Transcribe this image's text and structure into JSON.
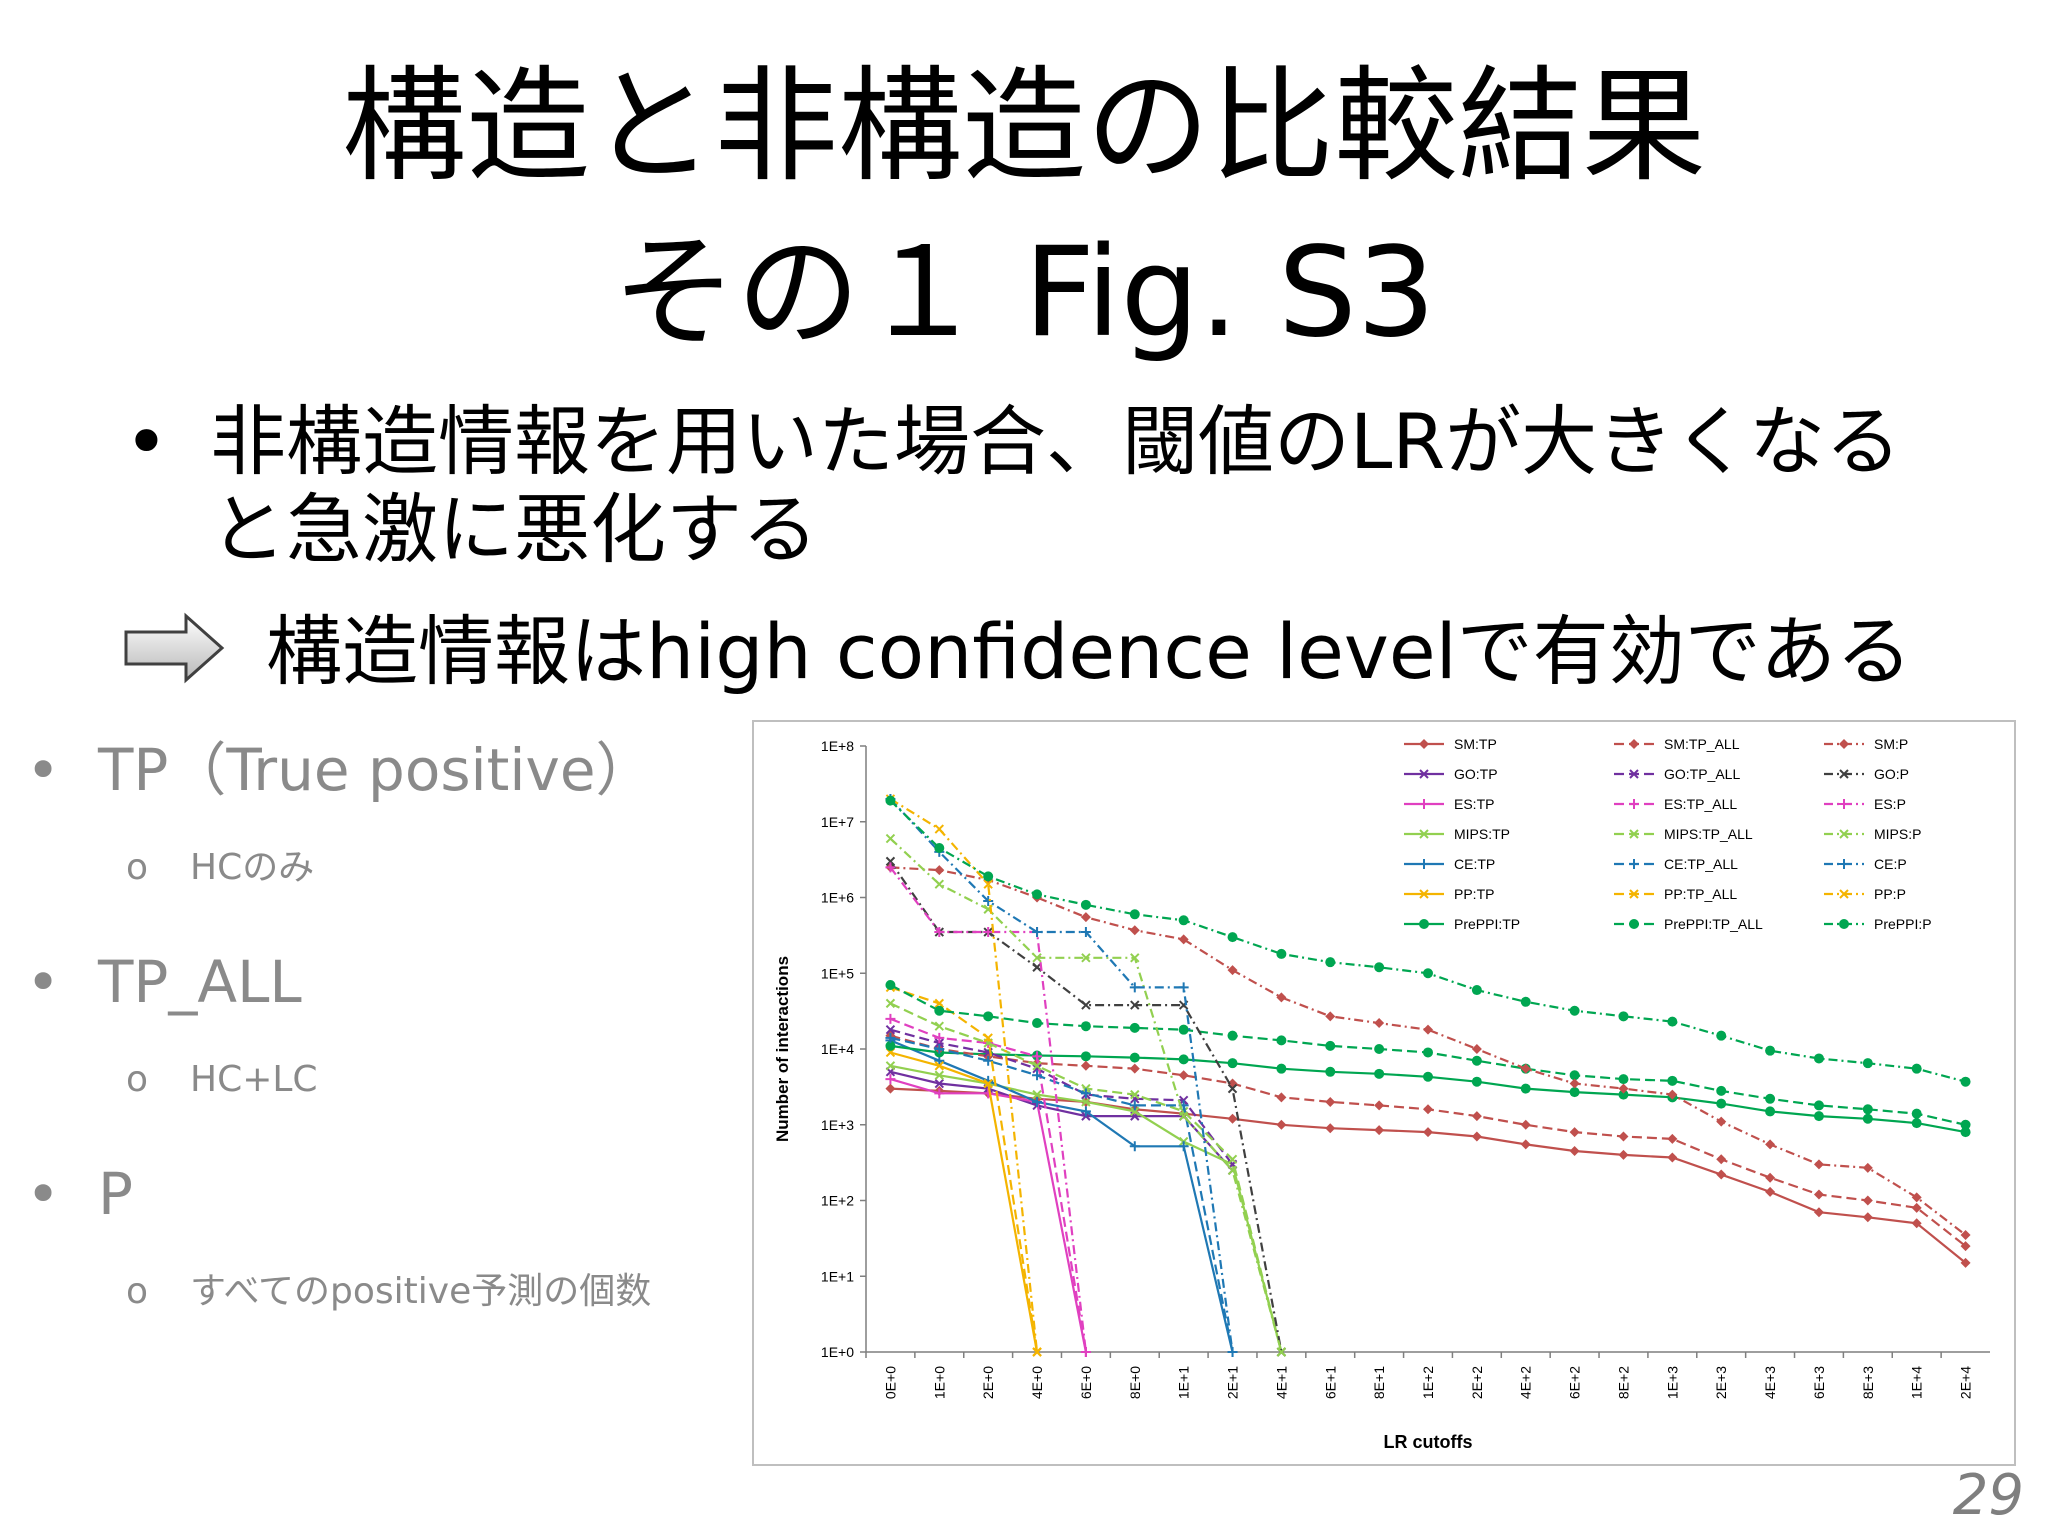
{
  "slide": {
    "title_line1": "構造と非構造の比較結果",
    "title_line2": "その１ Fig. S3",
    "bullet_dot": "•",
    "bullet_text": "非構造情報を用いた場合、閾値のLRが大きくなると急激に悪化する",
    "arrow_text": "構造情報はhigh confidence levelで有効である",
    "side_items": [
      {
        "label": "TP（True positive）",
        "sub": "HCのみ"
      },
      {
        "label": "TP_ALL",
        "sub": "HC+LC"
      },
      {
        "label": "P",
        "sub": "すべてのpositive予測の個数"
      }
    ],
    "sub_marker": "o",
    "page_number": "29"
  },
  "chart_data": {
    "type": "line",
    "y_scale": "log",
    "ylim": [
      1,
      100000000
    ],
    "xlabel": "LR cutoffs",
    "ylabel": "Number of interactions",
    "y_ticks": [
      "1E+0",
      "1E+1",
      "1E+2",
      "1E+3",
      "1E+4",
      "1E+5",
      "1E+6",
      "1E+7",
      "1E+8"
    ],
    "categories": [
      "0E+0",
      "1E+0",
      "2E+0",
      "4E+0",
      "6E+0",
      "8E+0",
      "1E+1",
      "2E+1",
      "4E+1",
      "6E+1",
      "8E+1",
      "1E+2",
      "2E+2",
      "4E+2",
      "6E+2",
      "8E+2",
      "1E+3",
      "2E+3",
      "4E+3",
      "6E+3",
      "8E+3",
      "1E+4",
      "2E+4"
    ],
    "legend_position": "top-right",
    "series": [
      {
        "name": "SM:TP",
        "color": "#c0504d",
        "dash": "solid",
        "marker": "diamond",
        "values": [
          3000,
          2800,
          2600,
          2200,
          2000,
          1600,
          1400,
          1200,
          1000,
          900,
          850,
          800,
          700,
          550,
          450,
          400,
          370,
          220,
          130,
          70,
          60,
          50,
          15
        ]
      },
      {
        "name": "GO:TP",
        "color": "#7030a0",
        "dash": "solid",
        "marker": "x",
        "values": [
          5000,
          3500,
          3000,
          1800,
          1300,
          1300,
          1300,
          250,
          null,
          null,
          null,
          null,
          null,
          null,
          null,
          null,
          null,
          null,
          null,
          null,
          null,
          null,
          null
        ]
      },
      {
        "name": "ES:TP",
        "color": "#e040c0",
        "dash": "solid",
        "marker": "plus",
        "values": [
          4000,
          2600,
          2600,
          2000,
          1,
          null,
          null,
          null,
          null,
          null,
          null,
          null,
          null,
          null,
          null,
          null,
          null,
          null,
          null,
          null,
          null,
          null,
          null
        ]
      },
      {
        "name": "MIPS:TP",
        "color": "#92d050",
        "dash": "solid",
        "marker": "x",
        "values": [
          6000,
          4500,
          3500,
          2500,
          2000,
          1500,
          600,
          300,
          1,
          null,
          null,
          null,
          null,
          null,
          null,
          null,
          null,
          null,
          null,
          null,
          null,
          null,
          null
        ]
      },
      {
        "name": "CE:TP",
        "color": "#1f78b4",
        "dash": "solid",
        "marker": "plus",
        "values": [
          13000,
          7000,
          3800,
          2000,
          1500,
          520,
          520,
          1,
          null,
          null,
          null,
          null,
          null,
          null,
          null,
          null,
          null,
          null,
          null,
          null,
          null,
          null,
          null
        ]
      },
      {
        "name": "PP:TP",
        "color": "#f4b400",
        "dash": "solid",
        "marker": "x",
        "values": [
          9000,
          6000,
          3500,
          1,
          null,
          null,
          null,
          null,
          null,
          null,
          null,
          null,
          null,
          null,
          null,
          null,
          null,
          null,
          null,
          null,
          null,
          null,
          null
        ]
      },
      {
        "name": "PrePPI:TP",
        "color": "#00a651",
        "dash": "solid",
        "marker": "circle",
        "values": [
          11000,
          9000,
          8500,
          8200,
          8000,
          7700,
          7300,
          6500,
          5500,
          5000,
          4700,
          4300,
          3700,
          3000,
          2700,
          2500,
          2300,
          1900,
          1500,
          1300,
          1200,
          1050,
          800
        ]
      },
      {
        "name": "SM:TP_ALL",
        "color": "#c0504d",
        "dash": "longdash",
        "marker": "diamond",
        "values": [
          15000,
          10000,
          8000,
          6500,
          6000,
          5500,
          4500,
          3500,
          2300,
          2000,
          1800,
          1600,
          1300,
          1000,
          800,
          700,
          650,
          350,
          200,
          120,
          100,
          80,
          25
        ]
      },
      {
        "name": "GO:TP_ALL",
        "color": "#7030a0",
        "dash": "longdash",
        "marker": "x",
        "values": [
          18000,
          12000,
          9000,
          5500,
          2500,
          2200,
          2100,
          300,
          null,
          null,
          null,
          null,
          null,
          null,
          null,
          null,
          null,
          null,
          null,
          null,
          null,
          null,
          null
        ]
      },
      {
        "name": "ES:TP_ALL",
        "color": "#e040c0",
        "dash": "longdash",
        "marker": "plus",
        "values": [
          25000,
          14000,
          12000,
          8000,
          1,
          null,
          null,
          null,
          null,
          null,
          null,
          null,
          null,
          null,
          null,
          null,
          null,
          null,
          null,
          null,
          null,
          null,
          null
        ]
      },
      {
        "name": "MIPS:TP_ALL",
        "color": "#92d050",
        "dash": "longdash",
        "marker": "x",
        "values": [
          40000,
          20000,
          12000,
          6000,
          3000,
          2500,
          1500,
          350,
          1,
          null,
          null,
          null,
          null,
          null,
          null,
          null,
          null,
          null,
          null,
          null,
          null,
          null,
          null
        ]
      },
      {
        "name": "CE:TP_ALL",
        "color": "#1f78b4",
        "dash": "longdash",
        "marker": "plus",
        "values": [
          14000,
          10000,
          7000,
          4500,
          2600,
          1800,
          1800,
          1,
          null,
          null,
          null,
          null,
          null,
          null,
          null,
          null,
          null,
          null,
          null,
          null,
          null,
          null,
          null
        ]
      },
      {
        "name": "PP:TP_ALL",
        "color": "#f4b400",
        "dash": "longdash",
        "marker": "x",
        "values": [
          65000,
          40000,
          14000,
          1,
          null,
          null,
          null,
          null,
          null,
          null,
          null,
          null,
          null,
          null,
          null,
          null,
          null,
          null,
          null,
          null,
          null,
          null,
          null
        ]
      },
      {
        "name": "PrePPI:TP_ALL",
        "color": "#00a651",
        "dash": "longdash",
        "marker": "circle",
        "values": [
          70000,
          32000,
          27000,
          22000,
          20000,
          19000,
          18000,
          15000,
          13000,
          11000,
          10000,
          9000,
          7000,
          5500,
          4500,
          4000,
          3800,
          2800,
          2200,
          1800,
          1600,
          1400,
          1000
        ]
      },
      {
        "name": "SM:P",
        "color": "#c0504d",
        "dash": "dashdot",
        "marker": "diamond",
        "values": [
          2500000,
          2300000,
          1700000,
          1000000,
          550000,
          370000,
          280000,
          110000,
          48000,
          27000,
          22000,
          18000,
          10000,
          5500,
          3500,
          3000,
          2500,
          1100,
          550,
          300,
          270,
          110,
          35
        ]
      },
      {
        "name": "GO:P",
        "color": "#404040",
        "dash": "dashdot",
        "marker": "x",
        "values": [
          3000000,
          350000,
          350000,
          120000,
          38000,
          38000,
          38000,
          3000,
          1,
          null,
          null,
          null,
          null,
          null,
          null,
          null,
          null,
          null,
          null,
          null,
          null,
          null,
          null
        ]
      },
      {
        "name": "ES:P",
        "color": "#e040c0",
        "dash": "dashdot",
        "marker": "plus",
        "values": [
          2500000,
          350000,
          350000,
          350000,
          1,
          null,
          null,
          null,
          null,
          null,
          null,
          null,
          null,
          null,
          null,
          null,
          null,
          null,
          null,
          null,
          null,
          null,
          null
        ]
      },
      {
        "name": "MIPS:P",
        "color": "#92d050",
        "dash": "dashdot",
        "marker": "x",
        "values": [
          6000000,
          1500000,
          700000,
          160000,
          160000,
          160000,
          1300,
          250,
          1,
          null,
          null,
          null,
          null,
          null,
          null,
          null,
          null,
          null,
          null,
          null,
          null,
          null,
          null
        ]
      },
      {
        "name": "CE:P",
        "color": "#1f78b4",
        "dash": "dashdot",
        "marker": "plus",
        "values": [
          20000000,
          4000000,
          900000,
          350000,
          350000,
          65000,
          65000,
          1,
          null,
          null,
          null,
          null,
          null,
          null,
          null,
          null,
          null,
          null,
          null,
          null,
          null,
          null,
          null
        ]
      },
      {
        "name": "PP:P",
        "color": "#f4b400",
        "dash": "dashdot",
        "marker": "x",
        "values": [
          20000000,
          8000000,
          1500000,
          1,
          null,
          null,
          null,
          null,
          null,
          null,
          null,
          null,
          null,
          null,
          null,
          null,
          null,
          null,
          null,
          null,
          null,
          null,
          null
        ]
      },
      {
        "name": "PrePPI:P",
        "color": "#00a651",
        "dash": "dashdot",
        "marker": "circle",
        "values": [
          19000000,
          4500000,
          1900000,
          1100000,
          800000,
          600000,
          500000,
          300000,
          180000,
          140000,
          120000,
          100000,
          60000,
          42000,
          32000,
          27000,
          23000,
          15000,
          9500,
          7500,
          6500,
          5500,
          3700
        ]
      }
    ]
  }
}
